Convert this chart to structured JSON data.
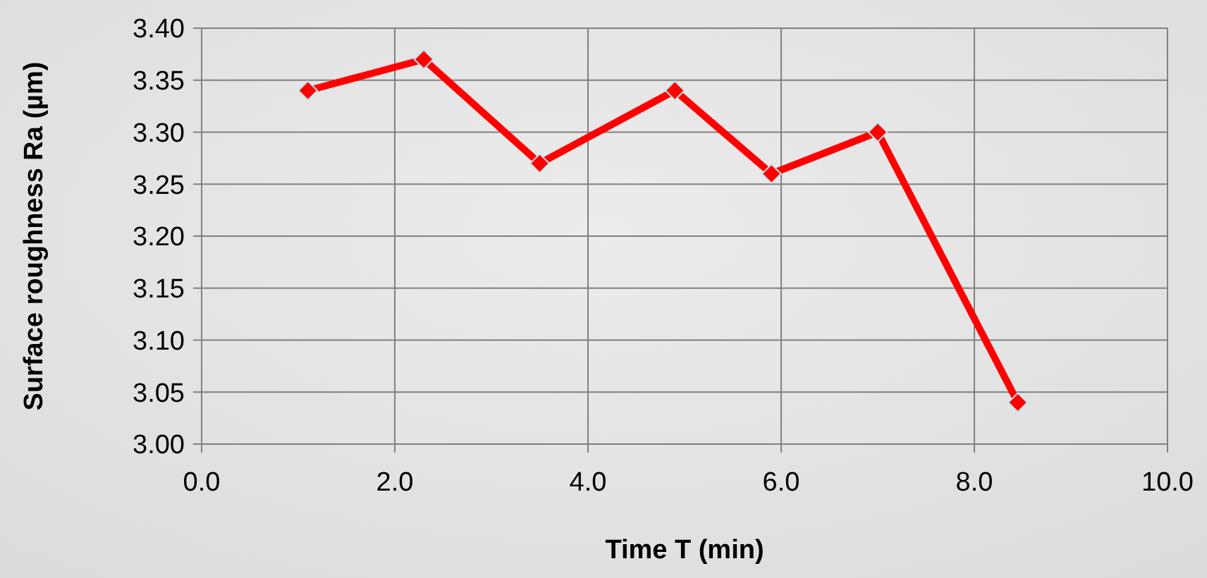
{
  "chart_data": {
    "type": "line",
    "xlabel": "Time T (min)",
    "ylabel": "Surface roughness Ra (µm)",
    "x": [
      1.1,
      2.3,
      3.5,
      4.9,
      5.9,
      7.0,
      8.45
    ],
    "series": [
      {
        "color": "#ff0000",
        "values": [
          3.34,
          3.37,
          3.27,
          3.34,
          3.26,
          3.3,
          3.04
        ]
      }
    ],
    "xlim": [
      0,
      10
    ],
    "xticks": [
      {
        "value": 0,
        "label": "0.0"
      },
      {
        "value": 2,
        "label": "2.0"
      },
      {
        "value": 4,
        "label": "4.0"
      },
      {
        "value": 6,
        "label": "6.0"
      },
      {
        "value": 8,
        "label": "8.0"
      },
      {
        "value": 10,
        "label": "10.0"
      }
    ],
    "ylim": [
      3.0,
      3.4
    ],
    "yticks": [
      {
        "value": 3.0,
        "label": "3.00"
      },
      {
        "value": 3.05,
        "label": "3.05"
      },
      {
        "value": 3.1,
        "label": "3.10"
      },
      {
        "value": 3.15,
        "label": "3.15"
      },
      {
        "value": 3.2,
        "label": "3.20"
      },
      {
        "value": 3.25,
        "label": "3.25"
      },
      {
        "value": 3.3,
        "label": "3.30"
      },
      {
        "value": 3.35,
        "label": "3.35"
      },
      {
        "value": 3.4,
        "label": "3.40"
      }
    ],
    "grid": true,
    "marker": "diamond",
    "line_style": "solid"
  }
}
